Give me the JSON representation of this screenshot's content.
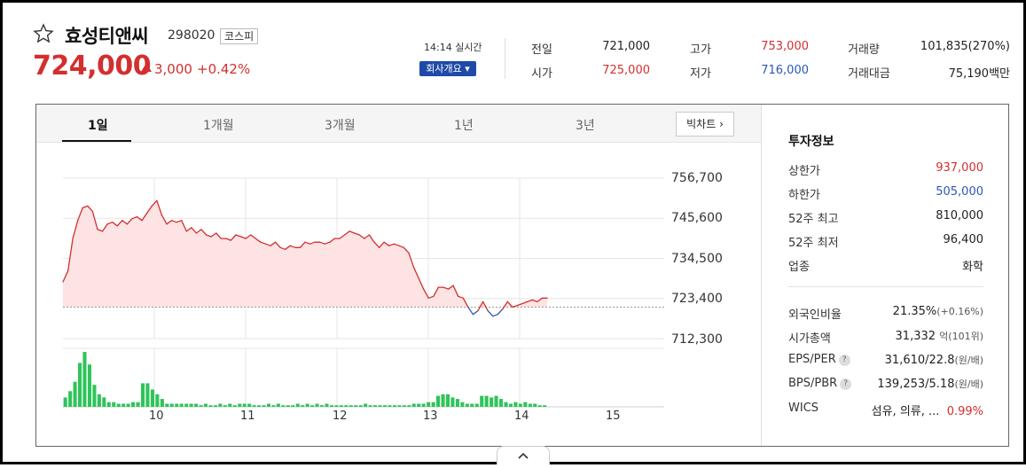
{
  "stock": {
    "name": "효성티앤씨",
    "code": "298020",
    "market": "코스피",
    "price": "724,000",
    "change": "3,000",
    "change_pct": "+0.42%",
    "time": "14:14 실시간",
    "company_btn": "회사개요 ▾"
  },
  "summary": [
    {
      "label": "전일",
      "value": "721,000",
      "color": "dark"
    },
    {
      "label": "시가",
      "value": "725,000",
      "color": "red"
    },
    {
      "label": "고가",
      "value": "753,000",
      "color": "red"
    },
    {
      "label": "저가",
      "value": "716,000",
      "color": "blue"
    },
    {
      "label": "거래량",
      "value": "101,835(270%)",
      "color": "dark"
    },
    {
      "label": "거래대금",
      "value": "75,190백만",
      "color": "dark"
    }
  ],
  "tabs": [
    "1일",
    "1개월",
    "3개월",
    "1년",
    "3년"
  ],
  "bigchart_label": "빅차트",
  "chart_data": {
    "type": "line",
    "title": "",
    "y_ticks": [
      "756,700",
      "745,600",
      "734,500",
      "723,400",
      "712,300"
    ],
    "x_ticks": [
      "10",
      "11",
      "12",
      "13",
      "14",
      "15"
    ],
    "ylim": [
      712300,
      756700
    ],
    "prev_close": 721000,
    "price_series": [
      728000,
      731000,
      740000,
      745000,
      748500,
      749000,
      747500,
      742500,
      742000,
      744000,
      744500,
      743500,
      745000,
      744000,
      745500,
      746000,
      745000,
      747000,
      749000,
      750500,
      746500,
      744000,
      745000,
      744500,
      745000,
      742000,
      743000,
      741500,
      742500,
      741000,
      740500,
      741500,
      740000,
      740000,
      739500,
      741000,
      740500,
      740000,
      741000,
      740000,
      739000,
      738500,
      738000,
      739000,
      737500,
      737000,
      738000,
      737500,
      737500,
      739000,
      738500,
      739000,
      739000,
      738500,
      739000,
      740000,
      740000,
      741000,
      742000,
      741500,
      741000,
      740000,
      741000,
      739000,
      737500,
      739000,
      738000,
      738500,
      738000,
      737500,
      736000,
      732000,
      729000,
      726000,
      723500,
      724000,
      726500,
      726500,
      726000,
      727000,
      724000,
      723500,
      721000,
      719000,
      720000,
      722500,
      720000,
      718500,
      719000,
      720500,
      722500,
      721000,
      721500,
      722000,
      722500,
      723000,
      722500,
      723500,
      723500
    ],
    "volume": [
      6,
      10,
      16,
      28,
      35,
      27,
      14,
      8,
      6,
      3,
      3,
      2,
      2,
      2,
      3,
      3,
      15,
      15,
      11,
      8,
      5,
      2,
      2,
      2,
      2,
      2,
      2,
      2,
      1,
      2,
      1,
      1,
      2,
      1,
      2,
      1,
      2,
      2,
      2,
      1,
      1,
      1,
      2,
      1,
      2,
      1,
      1,
      1,
      2,
      1,
      2,
      1,
      2,
      1,
      2,
      1,
      1,
      1,
      1,
      1,
      1,
      1,
      2,
      1,
      1,
      1,
      1,
      1,
      1,
      1,
      1,
      1,
      2,
      2,
      2,
      3,
      3,
      7,
      8,
      8,
      6,
      5,
      3,
      2,
      2,
      2,
      7,
      7,
      6,
      7,
      5,
      3,
      2,
      3,
      2,
      3,
      2,
      2,
      1,
      1
    ]
  },
  "info": {
    "title": "투자정보",
    "rows1": [
      {
        "label": "상한가",
        "value": "937,000",
        "color": "red"
      },
      {
        "label": "하한가",
        "value": "505,000",
        "color": "blue"
      },
      {
        "label": "52주 최고",
        "value": "810,000",
        "color": "dark"
      },
      {
        "label": "52주 최저",
        "value": "96,400",
        "color": "dark"
      },
      {
        "label": "업종",
        "value": "화학",
        "color": "dark"
      }
    ],
    "rows2": [
      {
        "label": "외국인비율",
        "value": "21.35%",
        "extra": "(+0.16%)"
      },
      {
        "label": "시가총액",
        "value": "31,332",
        "extra": "억(101위)"
      },
      {
        "label": "EPS/PER",
        "value": "31,610/22.8",
        "extra": "(원/배)",
        "help": "?"
      },
      {
        "label": "BPS/PBR",
        "value": "139,253/5.18",
        "extra": "(원/배)",
        "help": "?"
      },
      {
        "label": "WICS",
        "value": "섬유, 의류, ...",
        "extra": "0.99%"
      }
    ]
  },
  "colors": {
    "up": "#d32f2f",
    "down": "#2a57b8",
    "volume": "#2fc45a",
    "fill": "#fde3e3"
  }
}
